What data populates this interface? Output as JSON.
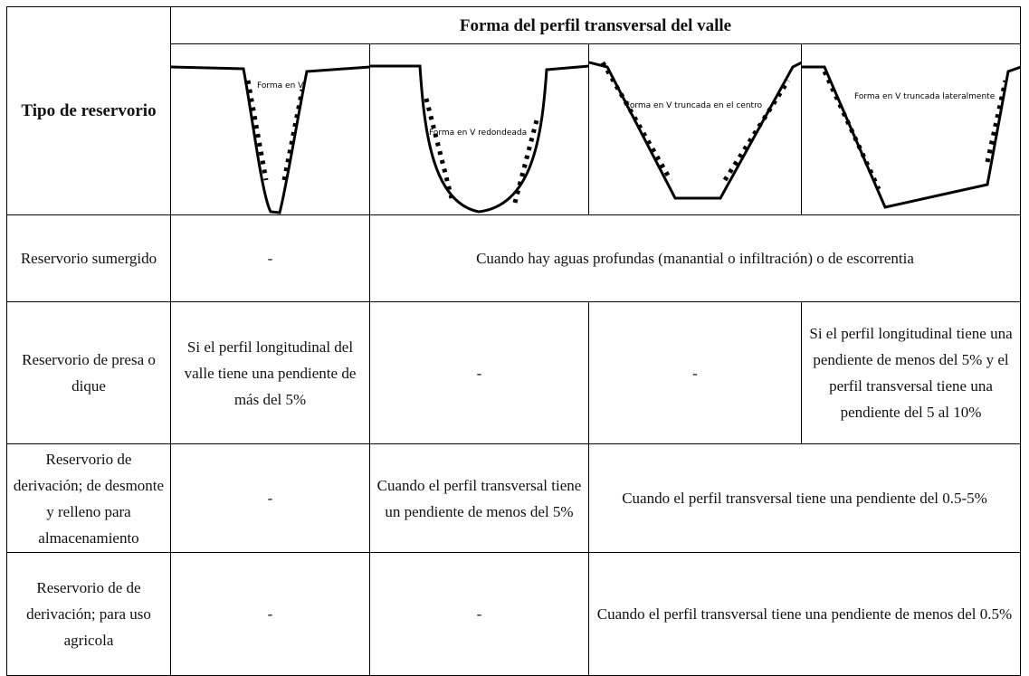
{
  "header": {
    "row_label": "Tipo de reservorio",
    "title": "Forma del perfil transversal del valle",
    "profiles": [
      "Forma en V",
      "Forma en V redondeada",
      "Forma en V truncada en el centro",
      "Forma en V truncada lateralmente"
    ]
  },
  "rows": [
    {
      "label": "Reservorio sumergido",
      "cells": [
        "-",
        "Cuando hay aguas profundas (manantial o infiltración) o de escorrentia"
      ]
    },
    {
      "label": "Reservorio de presa o dique",
      "cells": [
        "Si el perfil longitudinal del valle tiene una pendiente de más del 5%",
        "-",
        "-",
        "Si el perfil longitudinal tiene una pendiente de menos del 5% y el perfil transversal tiene una pendiente del 5 al 10%"
      ]
    },
    {
      "label": "Reservorio de derivación; de desmonte y relleno para almacenamiento",
      "cells": [
        "-",
        "Cuando el perfil transversal tiene un pendiente de menos del 5%",
        "Cuando el perfil transversal tiene una pendiente del 0.5-5%"
      ]
    },
    {
      "label": "Reservorio de de derivación; para uso agricola",
      "cells": [
        "-",
        "-",
        "Cuando el perfil transversal tiene una pendiente de menos del 0.5%"
      ]
    }
  ]
}
